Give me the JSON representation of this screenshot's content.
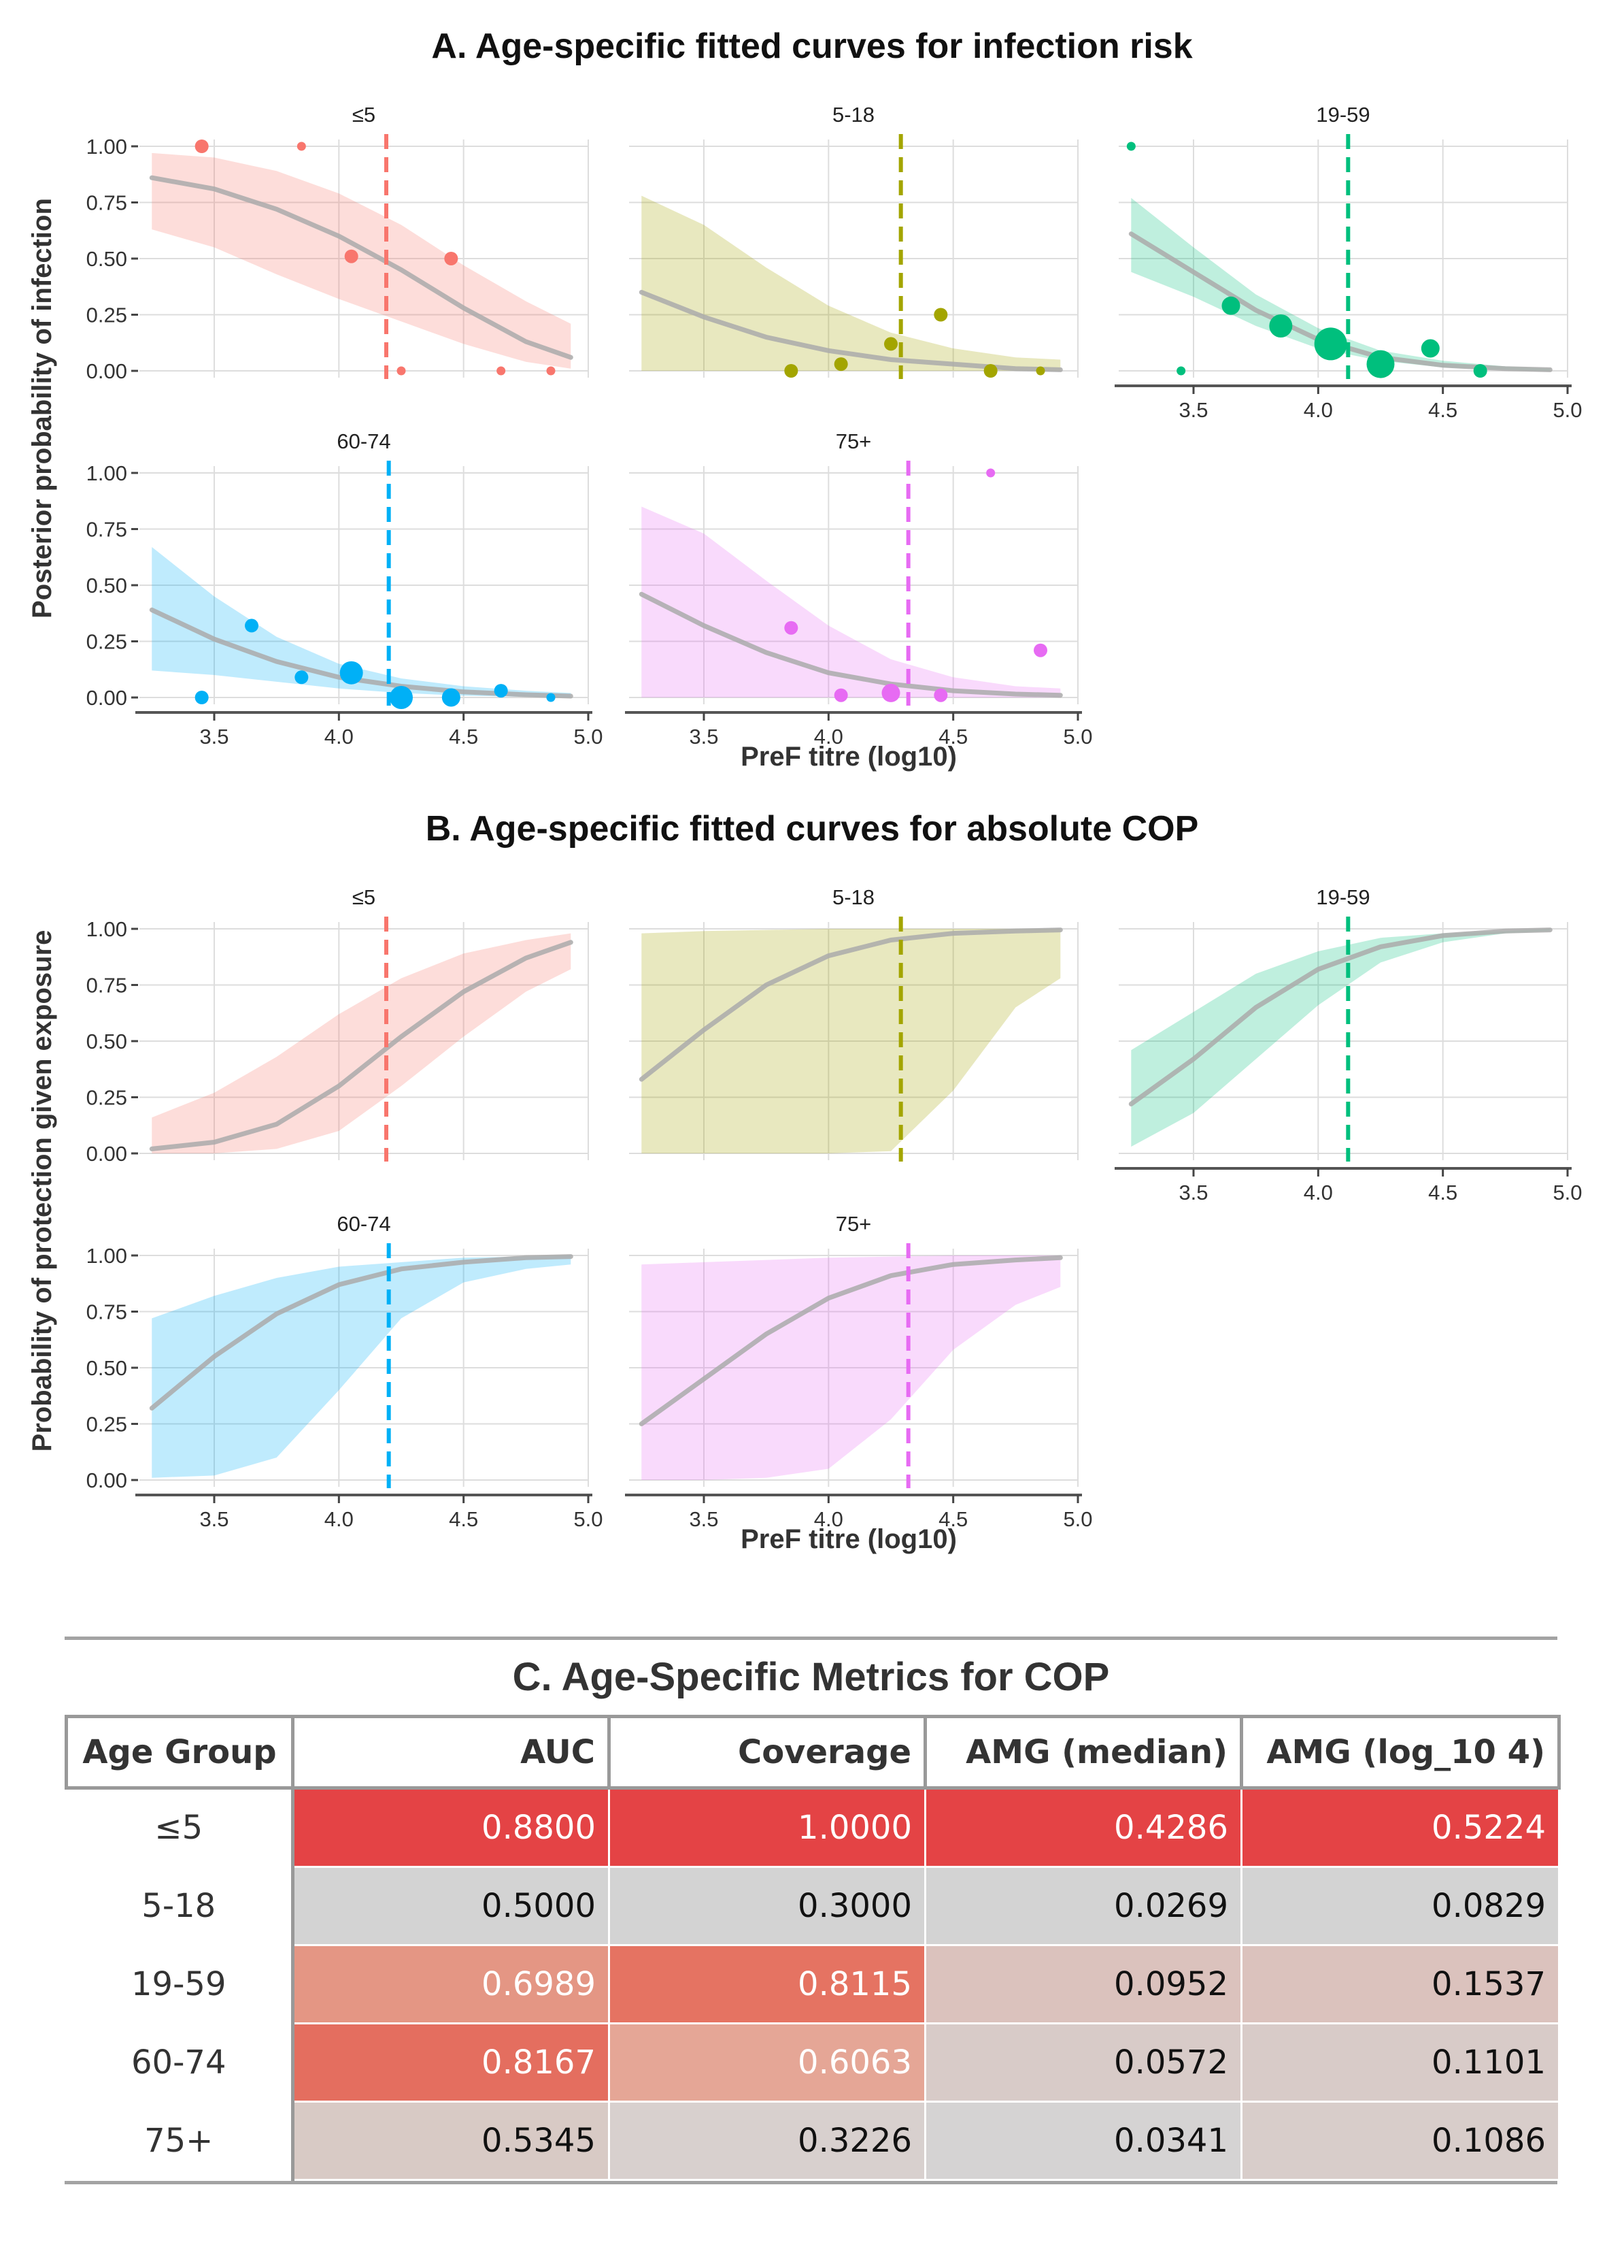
{
  "panel_a": {
    "title": "A. Age-specific fitted curves for infection risk",
    "xlabel": "PreF titre (log10)",
    "ylabel": "Posterior probability of infection"
  },
  "panel_b": {
    "title": "B. Age-specific fitted curves for absolute COP",
    "xlabel": "PreF titre (log10)",
    "ylabel": "Probability of protection given exposure"
  },
  "colors": {
    "≤5": "#F8766D",
    "5-18": "#A3A500",
    "19-59": "#00BF7D",
    "60-74": "#00B0F6",
    "75+": "#E76BF3",
    "curve": "#aaaaaa",
    "grid": "#dddddd",
    "axis": "#555555"
  },
  "chart_data": [
    {
      "type": "line",
      "title": "A. Age-specific fitted curves for infection risk",
      "xlabel": "PreF titre (log10)",
      "ylabel": "Posterior probability of infection",
      "xlim": [
        3.2,
        5.0
      ],
      "ylim": [
        0,
        1
      ],
      "x_ticks": [
        "3.5",
        "4.0",
        "4.5",
        "5.0"
      ],
      "y_ticks": [
        "0.00",
        "0.25",
        "0.50",
        "0.75",
        "1.00"
      ],
      "x_ticks_shown_under": [
        "19-59",
        "60-74",
        "75+"
      ],
      "grid": true,
      "facets": [
        {
          "label": "≤5",
          "threshold": 4.19,
          "curve": {
            "x": [
              3.25,
              3.5,
              3.75,
              4.0,
              4.25,
              4.5,
              4.75,
              4.93
            ],
            "y": [
              0.86,
              0.81,
              0.72,
              0.6,
              0.45,
              0.28,
              0.13,
              0.06
            ]
          },
          "band_upper": [
            0.97,
            0.95,
            0.89,
            0.79,
            0.65,
            0.47,
            0.31,
            0.21
          ],
          "band_lower": [
            0.63,
            0.55,
            0.43,
            0.32,
            0.22,
            0.12,
            0.04,
            0.01
          ],
          "points": {
            "x": [
              3.45,
              3.85,
              4.05,
              4.25,
              4.45,
              4.65,
              4.85
            ],
            "y": [
              1.0,
              1.0,
              0.51,
              0.0,
              0.5,
              0.0,
              0.0
            ],
            "size": [
              2,
              1,
              2,
              1,
              2,
              1,
              1
            ]
          }
        },
        {
          "label": "5-18",
          "threshold": 4.29,
          "curve": {
            "x": [
              3.25,
              3.5,
              3.75,
              4.0,
              4.25,
              4.5,
              4.75,
              4.93
            ],
            "y": [
              0.35,
              0.24,
              0.15,
              0.09,
              0.05,
              0.03,
              0.01,
              0.005
            ]
          },
          "band_upper": [
            0.78,
            0.65,
            0.46,
            0.29,
            0.17,
            0.1,
            0.06,
            0.05
          ],
          "band_lower": [
            0.0,
            0.0,
            0.0,
            0.0,
            0.0,
            0.0,
            0.0,
            0.0
          ],
          "points": {
            "x": [
              3.85,
              4.05,
              4.25,
              4.45,
              4.65,
              4.85
            ],
            "y": [
              0.0,
              0.03,
              0.12,
              0.25,
              0.0,
              0.0
            ],
            "size": [
              2,
              2,
              2,
              2,
              2,
              1
            ]
          }
        },
        {
          "label": "19-59",
          "threshold": 4.12,
          "curve": {
            "x": [
              3.25,
              3.5,
              3.75,
              4.0,
              4.25,
              4.5,
              4.75,
              4.93
            ],
            "y": [
              0.61,
              0.44,
              0.27,
              0.14,
              0.06,
              0.025,
              0.01,
              0.005
            ]
          },
          "band_upper": [
            0.77,
            0.55,
            0.34,
            0.19,
            0.09,
            0.045,
            0.02,
            0.01
          ],
          "band_lower": [
            0.44,
            0.33,
            0.2,
            0.1,
            0.045,
            0.015,
            0.005,
            0.0
          ],
          "points": {
            "x": [
              3.25,
              3.45,
              3.65,
              3.85,
              4.05,
              4.25,
              4.45,
              4.65
            ],
            "y": [
              1.0,
              0.0,
              0.29,
              0.2,
              0.12,
              0.03,
              0.1,
              0.0
            ],
            "size": [
              1,
              1,
              3,
              4,
              6,
              5,
              3,
              2
            ]
          }
        },
        {
          "label": "60-74",
          "threshold": 4.2,
          "curve": {
            "x": [
              3.25,
              3.5,
              3.75,
              4.0,
              4.25,
              4.5,
              4.75,
              4.93
            ],
            "y": [
              0.39,
              0.26,
              0.16,
              0.09,
              0.05,
              0.025,
              0.012,
              0.006
            ]
          },
          "band_upper": [
            0.67,
            0.45,
            0.27,
            0.15,
            0.085,
            0.05,
            0.03,
            0.02
          ],
          "band_lower": [
            0.12,
            0.1,
            0.07,
            0.04,
            0.02,
            0.008,
            0.003,
            0.0
          ],
          "points": {
            "x": [
              3.45,
              3.65,
              3.85,
              4.05,
              4.25,
              4.45,
              4.65,
              4.85
            ],
            "y": [
              0.0,
              0.32,
              0.09,
              0.11,
              0.0,
              0.0,
              0.03,
              0.0
            ],
            "size": [
              2,
              2,
              2,
              4,
              4,
              3,
              2,
              1
            ]
          }
        },
        {
          "label": "75+",
          "threshold": 4.32,
          "curve": {
            "x": [
              3.25,
              3.5,
              3.75,
              4.0,
              4.25,
              4.5,
              4.75,
              4.93
            ],
            "y": [
              0.46,
              0.32,
              0.2,
              0.11,
              0.06,
              0.03,
              0.015,
              0.01
            ]
          },
          "band_upper": [
            0.85,
            0.73,
            0.52,
            0.32,
            0.17,
            0.09,
            0.05,
            0.04
          ],
          "band_lower": [
            0.0,
            0.0,
            0.0,
            0.0,
            0.0,
            0.0,
            0.0,
            0.0
          ],
          "points": {
            "x": [
              3.85,
              4.05,
              4.25,
              4.45,
              4.65,
              4.85
            ],
            "y": [
              0.31,
              0.01,
              0.02,
              0.01,
              1.0,
              0.21
            ],
            "size": [
              2,
              2,
              3,
              2,
              1,
              2
            ]
          }
        }
      ]
    },
    {
      "type": "line",
      "title": "B. Age-specific fitted curves for absolute COP",
      "xlabel": "PreF titre (log10)",
      "ylabel": "Probability of protection given exposure",
      "xlim": [
        3.2,
        5.0
      ],
      "ylim": [
        0,
        1
      ],
      "x_ticks": [
        "3.5",
        "4.0",
        "4.5",
        "5.0"
      ],
      "y_ticks": [
        "0.00",
        "0.25",
        "0.50",
        "0.75",
        "1.00"
      ],
      "x_ticks_shown_under": [
        "19-59",
        "60-74",
        "75+"
      ],
      "grid": true,
      "facets": [
        {
          "label": "≤5",
          "threshold": 4.19,
          "curve": {
            "x": [
              3.25,
              3.5,
              3.75,
              4.0,
              4.25,
              4.5,
              4.75,
              4.93
            ],
            "y": [
              0.02,
              0.05,
              0.13,
              0.3,
              0.52,
              0.72,
              0.87,
              0.94
            ]
          },
          "band_upper": [
            0.16,
            0.27,
            0.43,
            0.62,
            0.78,
            0.89,
            0.95,
            0.98
          ],
          "band_lower": [
            0.0,
            0.0,
            0.02,
            0.1,
            0.3,
            0.52,
            0.72,
            0.82
          ]
        },
        {
          "label": "5-18",
          "threshold": 4.29,
          "curve": {
            "x": [
              3.25,
              3.5,
              3.75,
              4.0,
              4.25,
              4.5,
              4.75,
              4.93
            ],
            "y": [
              0.33,
              0.55,
              0.75,
              0.88,
              0.95,
              0.98,
              0.99,
              0.995
            ]
          },
          "band_upper": [
            0.98,
            0.99,
            0.995,
            1.0,
            1.0,
            1.0,
            1.0,
            1.0
          ],
          "band_lower": [
            0.0,
            0.0,
            0.0,
            0.0,
            0.01,
            0.28,
            0.65,
            0.78
          ]
        },
        {
          "label": "19-59",
          "threshold": 4.12,
          "curve": {
            "x": [
              3.25,
              3.5,
              3.75,
              4.0,
              4.25,
              4.5,
              4.75,
              4.93
            ],
            "y": [
              0.22,
              0.42,
              0.65,
              0.82,
              0.92,
              0.97,
              0.99,
              0.995
            ]
          },
          "band_upper": [
            0.46,
            0.63,
            0.8,
            0.9,
            0.96,
            0.98,
            0.99,
            1.0
          ],
          "band_lower": [
            0.03,
            0.18,
            0.42,
            0.66,
            0.85,
            0.94,
            0.98,
            0.99
          ]
        },
        {
          "label": "60-74",
          "threshold": 4.2,
          "curve": {
            "x": [
              3.25,
              3.5,
              3.75,
              4.0,
              4.25,
              4.5,
              4.75,
              4.93
            ],
            "y": [
              0.32,
              0.55,
              0.74,
              0.87,
              0.94,
              0.97,
              0.99,
              0.995
            ]
          },
          "band_upper": [
            0.72,
            0.82,
            0.9,
            0.95,
            0.97,
            0.99,
            0.995,
            1.0
          ],
          "band_lower": [
            0.01,
            0.02,
            0.1,
            0.4,
            0.72,
            0.88,
            0.94,
            0.96
          ]
        },
        {
          "label": "75+",
          "threshold": 4.32,
          "curve": {
            "x": [
              3.25,
              3.5,
              3.75,
              4.0,
              4.25,
              4.5,
              4.75,
              4.93
            ],
            "y": [
              0.25,
              0.45,
              0.65,
              0.81,
              0.91,
              0.96,
              0.98,
              0.99
            ]
          },
          "band_upper": [
            0.96,
            0.97,
            0.98,
            0.99,
            0.995,
            1.0,
            1.0,
            1.0
          ],
          "band_lower": [
            0.0,
            0.0,
            0.01,
            0.05,
            0.27,
            0.58,
            0.78,
            0.86
          ]
        }
      ]
    },
    {
      "type": "table",
      "title": "C. Age-Specific Metrics for COP",
      "columns": [
        "Age Group",
        "AUC",
        "Coverage",
        "AMG (median)",
        "AMG (log_10 4)"
      ],
      "rows": [
        {
          "age": "≤5",
          "cells": [
            {
              "text": "0.8800",
              "bg": "#e44345",
              "fg": "#ffffff"
            },
            {
              "text": "1.0000",
              "bg": "#e44345",
              "fg": "#ffffff"
            },
            {
              "text": "0.4286",
              "bg": "#e44345",
              "fg": "#ffffff"
            },
            {
              "text": "0.5224",
              "bg": "#e44345",
              "fg": "#ffffff"
            }
          ]
        },
        {
          "age": "5-18",
          "cells": [
            {
              "text": "0.5000",
              "bg": "#d3d3d3",
              "fg": "#111111"
            },
            {
              "text": "0.3000",
              "bg": "#d3d3d3",
              "fg": "#111111"
            },
            {
              "text": "0.0269",
              "bg": "#d3d3d3",
              "fg": "#111111"
            },
            {
              "text": "0.0829",
              "bg": "#d3d3d3",
              "fg": "#111111"
            }
          ]
        },
        {
          "age": "19-59",
          "cells": [
            {
              "text": "0.6989",
              "bg": "#e49684",
              "fg": "#ffffff"
            },
            {
              "text": "0.8115",
              "bg": "#e57362",
              "fg": "#ffffff"
            },
            {
              "text": "0.0952",
              "bg": "#dbc2bd",
              "fg": "#111111"
            },
            {
              "text": "0.1537",
              "bg": "#dbc2bd",
              "fg": "#111111"
            }
          ]
        },
        {
          "age": "60-74",
          "cells": [
            {
              "text": "0.8167",
              "bg": "#e46e5f",
              "fg": "#ffffff"
            },
            {
              "text": "0.6063",
              "bg": "#e5a696",
              "fg": "#ffffff"
            },
            {
              "text": "0.0572",
              "bg": "#d8cbc8",
              "fg": "#111111"
            },
            {
              "text": "0.1101",
              "bg": "#d8cbc8",
              "fg": "#111111"
            }
          ]
        },
        {
          "age": "75+",
          "cells": [
            {
              "text": "0.5345",
              "bg": "#d8cac5",
              "fg": "#111111"
            },
            {
              "text": "0.3226",
              "bg": "#d8d0ce",
              "fg": "#111111"
            },
            {
              "text": "0.0341",
              "bg": "#d5d3d3",
              "fg": "#111111"
            },
            {
              "text": "0.1086",
              "bg": "#d8cdca",
              "fg": "#111111"
            }
          ]
        }
      ]
    }
  ]
}
